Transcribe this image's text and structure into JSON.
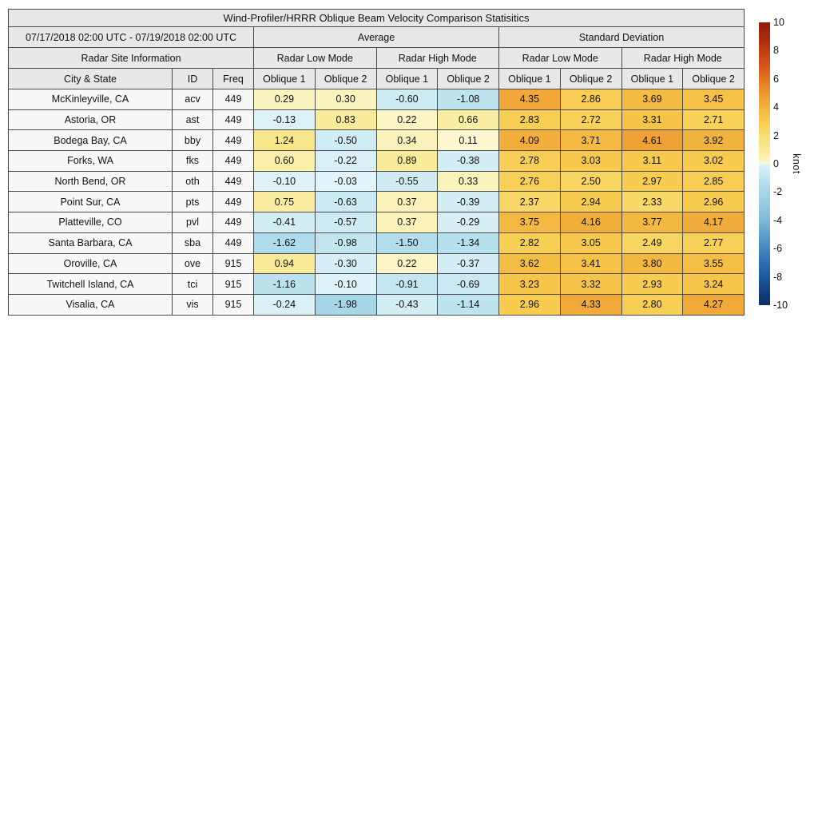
{
  "chart_data": {
    "type": "heatmap",
    "title": "Wind-Profiler/HRRR Oblique Beam Velocity Comparison Statisitics",
    "date_range": "07/17/2018 02:00 UTC - 07/19/2018 02:00 UTC",
    "unit": "knot",
    "value_range": [
      -10,
      10
    ],
    "group_headers": {
      "left": "Average",
      "right": "Standard Deviation"
    },
    "site_info_header": "Radar Site Information",
    "modes": [
      "Radar Low Mode",
      "Radar High Mode",
      "Radar Low Mode",
      "Radar High Mode"
    ],
    "columns": [
      "City & State",
      "ID",
      "Freq",
      "Oblique 1",
      "Oblique 2",
      "Oblique 1",
      "Oblique 2",
      "Oblique 1",
      "Oblique 2",
      "Oblique 1",
      "Oblique 2"
    ],
    "rows": [
      {
        "city": "McKinleyville, CA",
        "id": "acv",
        "freq": "449",
        "values": [
          0.29,
          0.3,
          -0.6,
          -1.08,
          4.35,
          2.86,
          3.69,
          3.45
        ]
      },
      {
        "city": "Astoria, OR",
        "id": "ast",
        "freq": "449",
        "values": [
          -0.13,
          0.83,
          0.22,
          0.66,
          2.83,
          2.72,
          3.31,
          2.71
        ]
      },
      {
        "city": "Bodega Bay, CA",
        "id": "bby",
        "freq": "449",
        "values": [
          1.24,
          -0.5,
          0.34,
          0.11,
          4.09,
          3.71,
          4.61,
          3.92
        ]
      },
      {
        "city": "Forks, WA",
        "id": "fks",
        "freq": "449",
        "values": [
          0.6,
          -0.22,
          0.89,
          -0.38,
          2.78,
          3.03,
          3.11,
          3.02
        ]
      },
      {
        "city": "North Bend, OR",
        "id": "oth",
        "freq": "449",
        "values": [
          -0.1,
          -0.03,
          -0.55,
          0.33,
          2.76,
          2.5,
          2.97,
          2.85
        ]
      },
      {
        "city": "Point Sur, CA",
        "id": "pts",
        "freq": "449",
        "values": [
          0.75,
          -0.63,
          0.37,
          -0.39,
          2.37,
          2.94,
          2.33,
          2.96
        ]
      },
      {
        "city": "Platteville, CO",
        "id": "pvl",
        "freq": "449",
        "values": [
          -0.41,
          -0.57,
          0.37,
          -0.29,
          3.75,
          4.16,
          3.77,
          4.17
        ]
      },
      {
        "city": "Santa Barbara, CA",
        "id": "sba",
        "freq": "449",
        "values": [
          -1.62,
          -0.98,
          -1.5,
          -1.34,
          2.82,
          3.05,
          2.49,
          2.77
        ]
      },
      {
        "city": "Oroville, CA",
        "id": "ove",
        "freq": "915",
        "values": [
          0.94,
          -0.3,
          0.22,
          -0.37,
          3.62,
          3.41,
          3.8,
          3.55
        ]
      },
      {
        "city": "Twitchell Island, CA",
        "id": "tci",
        "freq": "915",
        "values": [
          -1.16,
          -0.1,
          -0.91,
          -0.69,
          3.23,
          3.32,
          2.93,
          3.24
        ]
      },
      {
        "city": "Visalia, CA",
        "id": "vis",
        "freq": "915",
        "values": [
          -0.24,
          -1.98,
          -0.43,
          -1.14,
          2.96,
          4.33,
          2.8,
          4.27
        ]
      }
    ],
    "colorbar": {
      "label": "knot",
      "min": -10,
      "max": 10,
      "ticks": [
        10,
        8,
        6,
        4,
        2,
        0,
        -2,
        -4,
        -6,
        -8,
        -10
      ],
      "stops": [
        [
          -10,
          "#0A2F62"
        ],
        [
          -9,
          "#12427F"
        ],
        [
          -8,
          "#1C59A3"
        ],
        [
          -7,
          "#2D6FAF"
        ],
        [
          -6,
          "#4488BE"
        ],
        [
          -5,
          "#619FCB"
        ],
        [
          -4,
          "#7FB8D8"
        ],
        [
          -3,
          "#93C9E0"
        ],
        [
          -2,
          "#A5D7E6"
        ],
        [
          -1.5,
          "#B2DDEB"
        ],
        [
          -1,
          "#C1E5F0"
        ],
        [
          -0.5,
          "#D0ECF4"
        ],
        [
          -0.001,
          "#E2F4F9"
        ],
        [
          0.001,
          "#FEFBD8"
        ],
        [
          0.3,
          "#FBF3BE"
        ],
        [
          0.6,
          "#FAEFA8"
        ],
        [
          1,
          "#F9EA94"
        ],
        [
          1.5,
          "#F8E482"
        ],
        [
          2,
          "#F8DE76"
        ],
        [
          2.5,
          "#F8D560"
        ],
        [
          3,
          "#F7CB4E"
        ],
        [
          3.5,
          "#F5C046"
        ],
        [
          4,
          "#F2B23D"
        ],
        [
          5,
          "#EE9630"
        ],
        [
          6,
          "#E37423"
        ],
        [
          7,
          "#D5541A"
        ],
        [
          8,
          "#BF3D0F"
        ],
        [
          9,
          "#A52A0B"
        ],
        [
          10,
          "#8F1D08"
        ]
      ]
    },
    "style_colors": {
      "header_bg": "#e8e8e8",
      "site_bg": "#f8f8f8",
      "border": "#4a4a4a"
    }
  }
}
